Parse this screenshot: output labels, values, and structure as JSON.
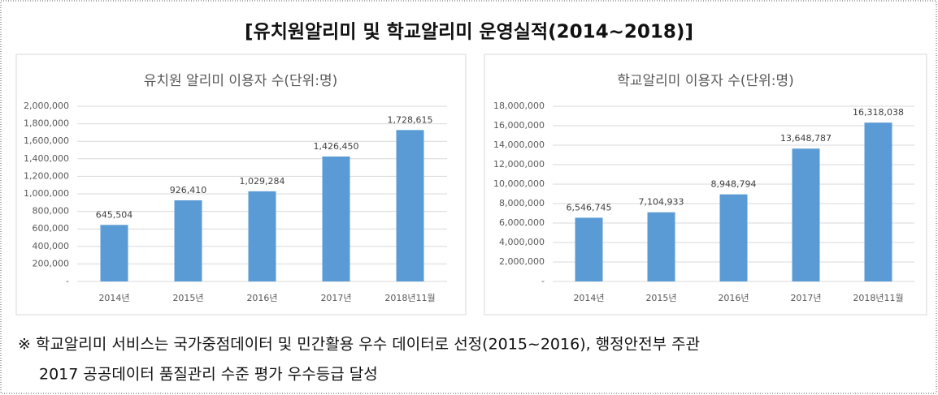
{
  "header": {
    "title": "[유치원알리미 및 학교알리미 운영실적(2014~2018)]"
  },
  "chart_data": [
    {
      "type": "bar",
      "title": "유치원 알리미 이용자 수(단위:명)",
      "categories": [
        "2014년",
        "2015년",
        "2016년",
        "2017년",
        "2018년11월"
      ],
      "values": [
        645504,
        926410,
        1029284,
        1426450,
        1728615
      ],
      "value_labels": [
        "645,504",
        "926,410",
        "1,029,284",
        "1,426,450",
        "1,728,615"
      ],
      "color": "#5b9bd5",
      "ylim": [
        0,
        2000000
      ],
      "yticks": [
        {
          "value": 0,
          "label": "-"
        },
        {
          "value": 200000,
          "label": "200,000"
        },
        {
          "value": 400000,
          "label": "400,000"
        },
        {
          "value": 600000,
          "label": "600,000"
        },
        {
          "value": 800000,
          "label": "800,000"
        },
        {
          "value": 1000000,
          "label": "1,000,000"
        },
        {
          "value": 1200000,
          "label": "1,200,000"
        },
        {
          "value": 1400000,
          "label": "1,400,000"
        },
        {
          "value": 1600000,
          "label": "1,600,000"
        },
        {
          "value": 1800000,
          "label": "1,800,000"
        },
        {
          "value": 2000000,
          "label": "2,000,000"
        }
      ],
      "grid": true
    },
    {
      "type": "bar",
      "title": "학교알리미 이용자 수(단위:명)",
      "categories": [
        "2014년",
        "2015년",
        "2016년",
        "2017년",
        "2018년11월"
      ],
      "values": [
        6546745,
        7104933,
        8948794,
        13648787,
        16318038
      ],
      "value_labels": [
        "6,546,745",
        "7,104,933",
        "8,948,794",
        "13,648,787",
        "16,318,038"
      ],
      "color": "#5b9bd5",
      "ylim": [
        0,
        18000000
      ],
      "yticks": [
        {
          "value": 0,
          "label": "-"
        },
        {
          "value": 2000000,
          "label": "2,000,000"
        },
        {
          "value": 4000000,
          "label": "4,000,000"
        },
        {
          "value": 6000000,
          "label": "6,000,000"
        },
        {
          "value": 8000000,
          "label": "8,000,000"
        },
        {
          "value": 10000000,
          "label": "10,000,000"
        },
        {
          "value": 12000000,
          "label": "12,000,000"
        },
        {
          "value": 14000000,
          "label": "14,000,000"
        },
        {
          "value": 16000000,
          "label": "16,000,000"
        },
        {
          "value": 18000000,
          "label": "18,000,000"
        }
      ],
      "grid": true
    }
  ],
  "note": {
    "lines": [
      "※ 학교알리미 서비스는 국가중점데이터 및 민간활용 우수 데이터로 선정(2015~2016), 행정안전부 주관",
      "2017 공공데이터 품질관리 수준 평가 우수등급 달성"
    ]
  }
}
